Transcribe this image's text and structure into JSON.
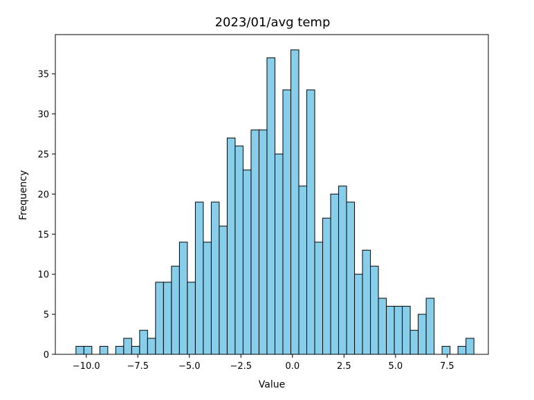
{
  "chart_data": {
    "type": "bar",
    "title": "2023/01/avg temp",
    "xlabel": "Value",
    "ylabel": "Frequency",
    "bin_start": -10.5,
    "bin_width": 0.386,
    "counts": [
      1,
      1,
      0,
      1,
      0,
      1,
      2,
      1,
      3,
      2,
      9,
      9,
      11,
      14,
      9,
      19,
      14,
      19,
      16,
      27,
      26,
      23,
      28,
      28,
      37,
      25,
      33,
      38,
      21,
      33,
      14,
      17,
      20,
      21,
      19,
      10,
      13,
      11,
      7,
      6,
      6,
      6,
      3,
      5,
      7,
      0,
      1,
      0,
      1,
      2
    ],
    "xlim": [
      -11.5,
      9.5
    ],
    "ylim": [
      0,
      39.9
    ],
    "x_ticks": [
      -10.0,
      -7.5,
      -5.0,
      -2.5,
      0.0,
      2.5,
      5.0,
      7.5
    ],
    "x_tick_labels": [
      "−10.0",
      "−7.5",
      "−5.0",
      "−2.5",
      "0.0",
      "2.5",
      "5.0",
      "7.5"
    ],
    "y_ticks": [
      0,
      5,
      10,
      15,
      20,
      25,
      30,
      35
    ],
    "y_tick_labels": [
      "0",
      "5",
      "10",
      "15",
      "20",
      "25",
      "30",
      "35"
    ],
    "colors": {
      "bar_fill": "#87ceeb",
      "bar_edge": "#000000"
    },
    "grid": false,
    "legend": "none"
  }
}
